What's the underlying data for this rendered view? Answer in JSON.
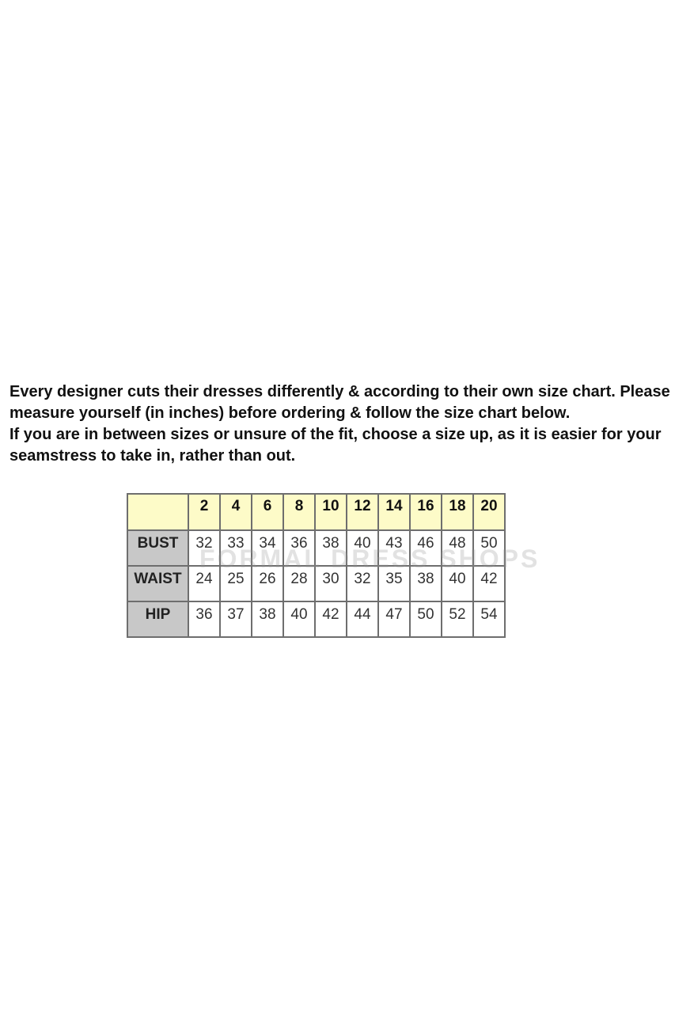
{
  "intro": {
    "paragraph1": "Every designer cuts their dresses differently & according to their own size chart. Please measure yourself (in inches) before ordering & follow the size chart below.",
    "paragraph2": "If you are in between sizes or unsure of the fit, choose a size up, as it is easier for your seamstress to take in, rather than out."
  },
  "size_chart": {
    "sizes": [
      "2",
      "4",
      "6",
      "8",
      "10",
      "12",
      "14",
      "16",
      "18",
      "20"
    ],
    "rows": [
      {
        "label": "BUST",
        "values": [
          "32",
          "33",
          "34",
          "36",
          "38",
          "40",
          "43",
          "46",
          "48",
          "50"
        ]
      },
      {
        "label": "WAIST",
        "values": [
          "24",
          "25",
          "26",
          "28",
          "30",
          "32",
          "35",
          "38",
          "40",
          "42"
        ]
      },
      {
        "label": "HIP",
        "values": [
          "36",
          "37",
          "38",
          "40",
          "42",
          "44",
          "47",
          "50",
          "52",
          "54"
        ]
      }
    ],
    "watermark": "FORMAL DRESS SHOPS",
    "colors": {
      "header_bg": "#fdfbc8",
      "label_bg": "#c8c8c8",
      "border": "#6e6e6e"
    }
  }
}
